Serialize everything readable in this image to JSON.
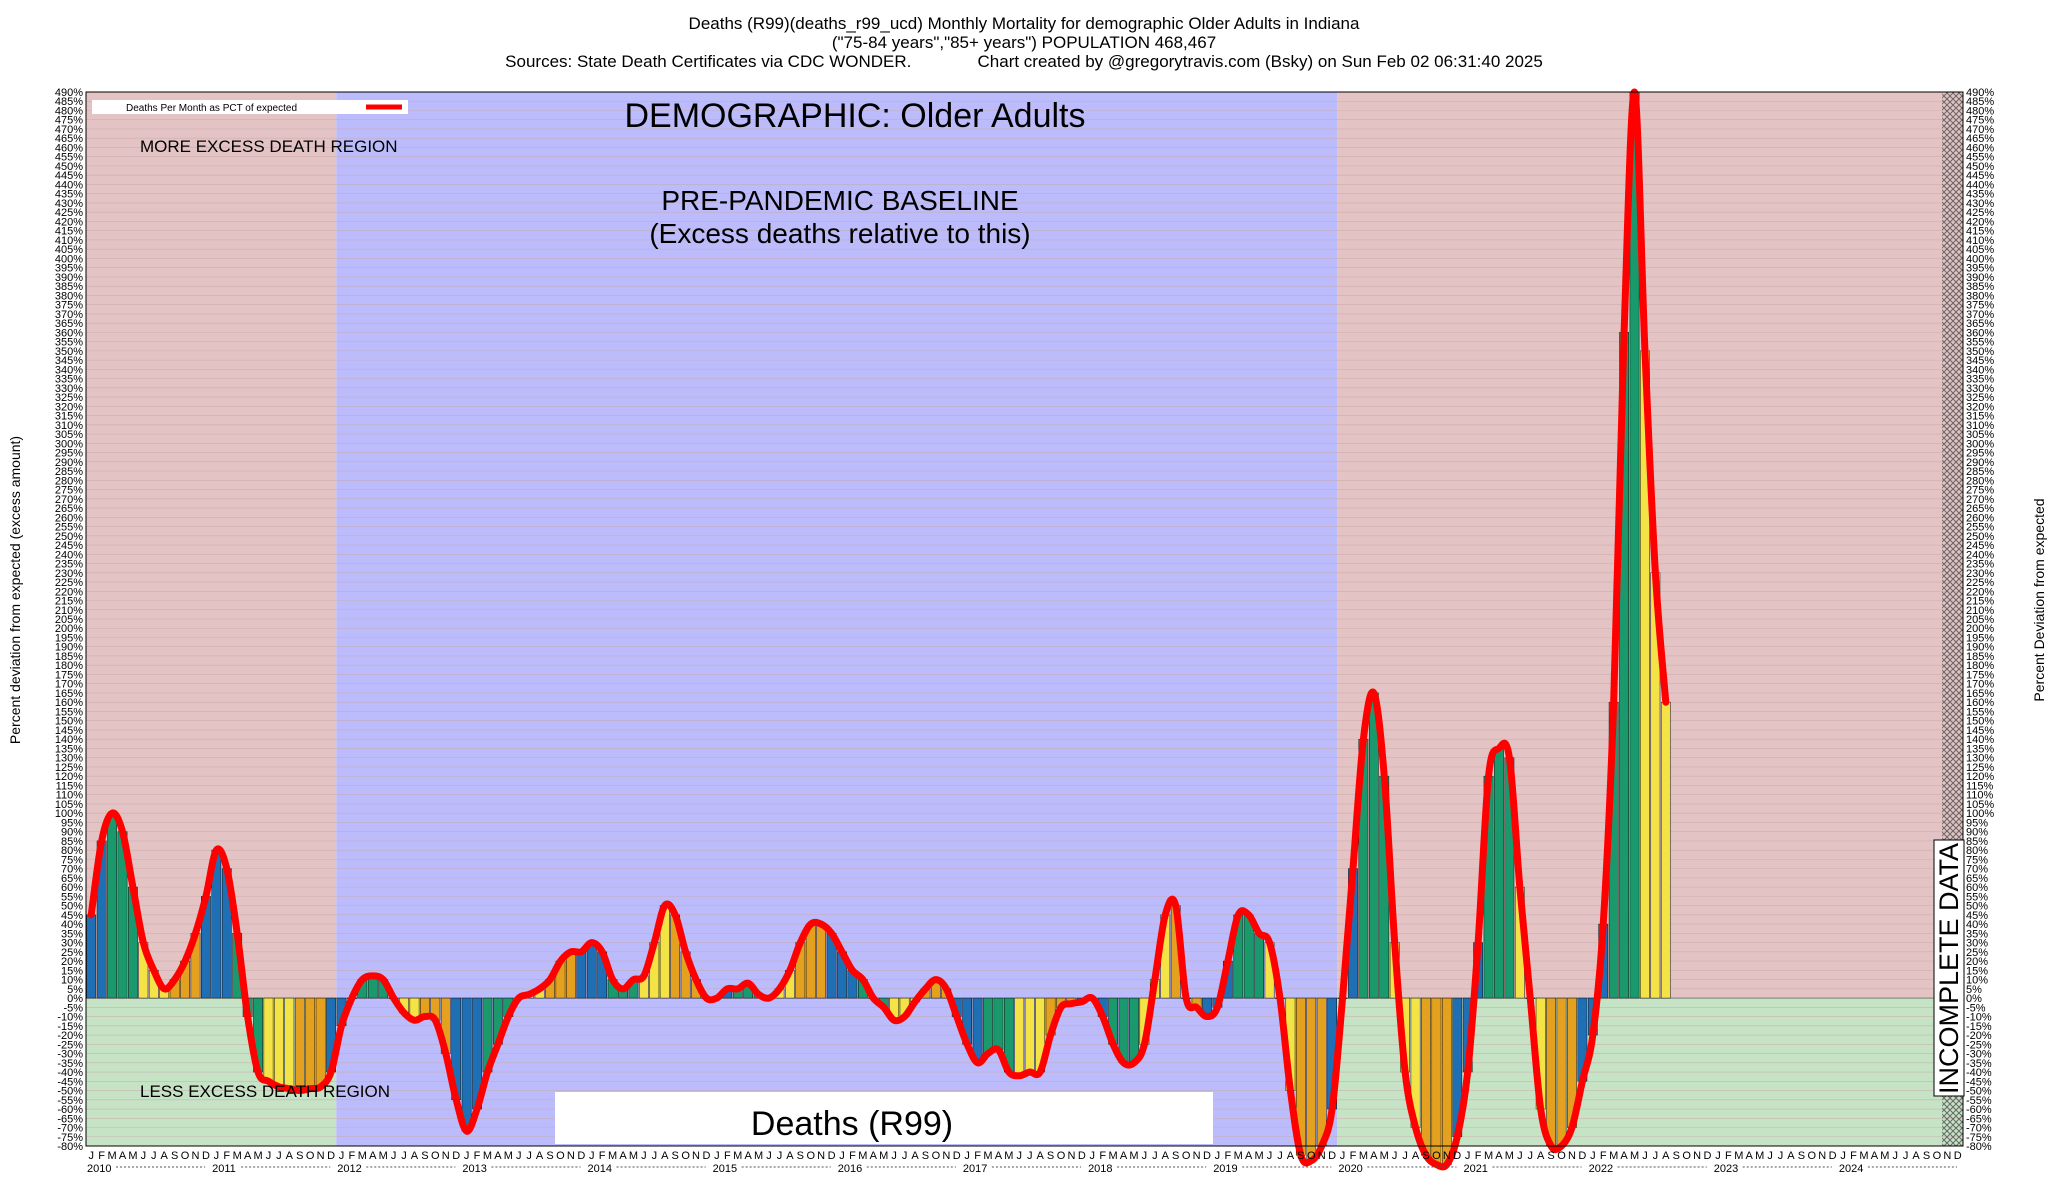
{
  "header": {
    "line1": "Deaths (R99)(deaths_r99_ucd) Monthly Mortality for demographic Older Adults in Indiana",
    "line2": "(\"75-84 years\",\"85+ years\") POPULATION 468,467",
    "line3": "Sources: State Death Certificates via CDC WONDER.              Chart created by @gregorytravis.com (Bsky) on Sun Feb 02 06:31:40 2025"
  },
  "chart_data": {
    "type": "bar",
    "ylabel_left": "Percent deviation from expected (excess amount)",
    "ylabel_right": "Percent Deviation from expected",
    "ylim": [
      -80,
      490
    ],
    "ytick_step": 5,
    "legend": {
      "label": "Deaths Per Month as PCT of expected",
      "position": "top-left",
      "line_color": "#ff0000"
    },
    "annotations": {
      "demographic": "DEMOGRAPHIC: Older Adults",
      "baseline_line1": "PRE-PANDEMIC BASELINE",
      "baseline_line2": "(Excess deaths relative to this)",
      "more_region": "MORE EXCESS DEATH REGION",
      "less_region": "LESS EXCESS DEATH REGION",
      "cause_box": "Deaths (R99)",
      "incomplete": "INCOMPLETE DATA"
    },
    "month_letters": [
      "J",
      "F",
      "M",
      "A",
      "M",
      "J",
      "J",
      "A",
      "S",
      "O",
      "N",
      "D"
    ],
    "years": [
      "2010",
      "2011",
      "2012",
      "2013",
      "2014",
      "2015",
      "2016",
      "2017",
      "2018",
      "2019",
      "2020",
      "2021",
      "2022",
      "2023",
      "2024"
    ],
    "baseline_years": [
      "2012",
      "2013",
      "2014",
      "2015",
      "2016",
      "2017",
      "2018",
      "2019"
    ],
    "incomplete_from": "2024-11",
    "season_colors": [
      "#1f6fb4",
      "#1a9a6c",
      "#f3e347",
      "#e3a11f"
    ],
    "colors": {
      "excess_region": "#e3c3c3",
      "less_region": "#c6e3c6",
      "baseline_region": "#bcbcfc",
      "line": "#ff0000"
    },
    "values": [
      45,
      85,
      100,
      90,
      60,
      30,
      15,
      5,
      10,
      20,
      35,
      55,
      80,
      70,
      35,
      -10,
      -40,
      -45,
      -48,
      -49,
      -50,
      -49,
      -48,
      -40,
      -15,
      0,
      10,
      12,
      10,
      0,
      -8,
      -12,
      -10,
      -12,
      -30,
      -55,
      -72,
      -60,
      -40,
      -25,
      -10,
      0,
      2,
      5,
      10,
      20,
      25,
      25,
      30,
      25,
      10,
      5,
      10,
      12,
      30,
      50,
      45,
      25,
      10,
      0,
      0,
      5,
      5,
      8,
      2,
      0,
      5,
      15,
      30,
      40,
      40,
      35,
      25,
      15,
      10,
      0,
      -5,
      -12,
      -10,
      -2,
      5,
      10,
      5,
      -10,
      -25,
      -35,
      -30,
      -28,
      -40,
      -42,
      -40,
      -40,
      -20,
      -5,
      -3,
      -2,
      0,
      -10,
      -25,
      -35,
      -35,
      -25,
      10,
      45,
      50,
      0,
      -5,
      -10,
      -5,
      20,
      45,
      45,
      35,
      30,
      0,
      -50,
      -85,
      -88,
      -80,
      -60,
      0,
      70,
      140,
      165,
      120,
      30,
      -40,
      -70,
      -85,
      -90,
      -90,
      -75,
      -40,
      30,
      120,
      135,
      130,
      60,
      0,
      -60,
      -80,
      -80,
      -70,
      -45,
      -20,
      40,
      160,
      360,
      490,
      350,
      230,
      160
    ]
  }
}
